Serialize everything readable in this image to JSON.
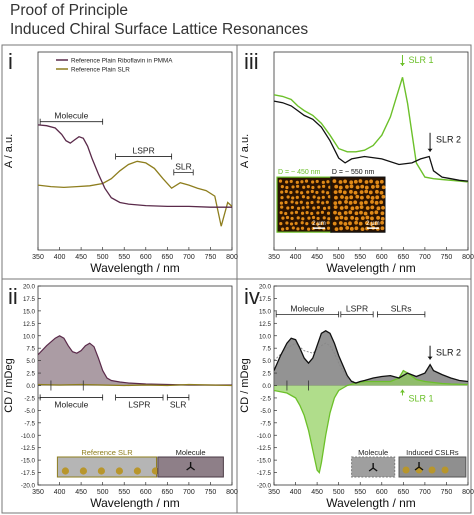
{
  "header": {
    "title_line1": "Proof of Principle",
    "title_line2": "Induced Chiral Surface Lattice Resonances"
  },
  "colors": {
    "black": "#111111",
    "purple": "#5a2a4a",
    "olive": "#8e7e1e",
    "green": "#6cc02a",
    "gray": "#8a8a8a",
    "purple_fill": "#8f7b86",
    "green_fill": "#8fcf5a",
    "frame_bg": "#f2f2f2"
  },
  "chart_data": [
    {
      "panel": "i",
      "type": "line",
      "xlabel": "Wavelength / nm",
      "ylabel": "A / a.u.",
      "xlim": [
        350,
        800
      ],
      "ylim": [
        0.0,
        0.25
      ],
      "xticks": [
        350,
        400,
        450,
        500,
        550,
        600,
        650,
        700,
        750,
        800
      ],
      "yticks": [],
      "legend": [
        "Reference Plain Riboflavin in PMMA",
        "Reference Plain SLR"
      ],
      "annotations": [
        {
          "label": "Molecule",
          "x1": 355,
          "x2": 500,
          "y": 0.162
        },
        {
          "label": "LSPR",
          "x1": 530,
          "x2": 660,
          "y": 0.118
        },
        {
          "label": "SLR",
          "x1": 665,
          "x2": 710,
          "y": 0.098
        }
      ],
      "series": [
        {
          "name": "Reference Plain Riboflavin in PMMA",
          "x": [
            350,
            370,
            390,
            405,
            415,
            425,
            435,
            445,
            455,
            465,
            475,
            490,
            505,
            520,
            540,
            560,
            600,
            650,
            700,
            750,
            800
          ],
          "y": [
            0.158,
            0.157,
            0.154,
            0.146,
            0.138,
            0.135,
            0.139,
            0.143,
            0.141,
            0.131,
            0.116,
            0.096,
            0.078,
            0.066,
            0.06,
            0.058,
            0.056,
            0.055,
            0.055,
            0.054,
            0.054
          ]
        },
        {
          "name": "Reference Plain SLR",
          "x": [
            350,
            380,
            410,
            440,
            470,
            500,
            520,
            540,
            560,
            580,
            600,
            620,
            640,
            660,
            680,
            700,
            720,
            740,
            760,
            775,
            790,
            800
          ],
          "y": [
            0.082,
            0.08,
            0.079,
            0.08,
            0.081,
            0.084,
            0.09,
            0.1,
            0.108,
            0.112,
            0.11,
            0.103,
            0.09,
            0.078,
            0.085,
            0.082,
            0.078,
            0.075,
            0.068,
            0.03,
            0.06,
            0.055
          ]
        }
      ]
    },
    {
      "panel": "iii",
      "type": "line",
      "xlabel": "Wavelength / nm",
      "ylabel": "A / a.u.",
      "xlim": [
        350,
        800
      ],
      "ylim": [
        0.0,
        0.25
      ],
      "xticks": [
        350,
        400,
        450,
        500,
        550,
        600,
        650,
        700,
        750,
        800
      ],
      "annotations": [
        {
          "label": "SLR 1",
          "x": 648,
          "color": "green"
        },
        {
          "label": "SLR 2",
          "x": 712,
          "color": "black"
        }
      ],
      "inset_labels": [
        "D = ~ 450 nm",
        "D = ~ 550 nm"
      ],
      "inset_scale": "2 µm",
      "series": [
        {
          "name": "D ~ 450 nm",
          "x": [
            350,
            370,
            390,
            405,
            420,
            440,
            460,
            480,
            500,
            520,
            540,
            560,
            580,
            600,
            620,
            635,
            648,
            660,
            680,
            700,
            720,
            740,
            760,
            780,
            800
          ],
          "y": [
            0.196,
            0.194,
            0.19,
            0.182,
            0.176,
            0.17,
            0.16,
            0.145,
            0.128,
            0.124,
            0.124,
            0.126,
            0.132,
            0.145,
            0.168,
            0.195,
            0.218,
            0.185,
            0.11,
            0.092,
            0.09,
            0.089,
            0.088,
            0.087,
            0.086
          ]
        },
        {
          "name": "D ~ 550 nm",
          "x": [
            350,
            370,
            390,
            405,
            420,
            440,
            460,
            480,
            500,
            515,
            530,
            560,
            600,
            640,
            670,
            690,
            710,
            720,
            740,
            760,
            780,
            800
          ],
          "y": [
            0.188,
            0.186,
            0.182,
            0.176,
            0.17,
            0.165,
            0.155,
            0.138,
            0.116,
            0.11,
            0.115,
            0.118,
            0.115,
            0.108,
            0.11,
            0.115,
            0.118,
            0.1,
            0.092,
            0.09,
            0.088,
            0.087
          ]
        }
      ]
    },
    {
      "panel": "ii",
      "type": "area",
      "xlabel": "Wavelength / nm",
      "ylabel": "CD / mDeg",
      "xlim": [
        350,
        800
      ],
      "ylim": [
        -20,
        20
      ],
      "xticks": [
        350,
        400,
        450,
        500,
        550,
        600,
        650,
        700,
        750,
        800
      ],
      "yticks": [
        -20,
        -17.5,
        -15,
        -12.5,
        -10,
        -7.5,
        -5,
        -2.5,
        0,
        2.5,
        5,
        7.5,
        10,
        12.5,
        15,
        17.5,
        20
      ],
      "annotations": [
        {
          "label": "Molecule",
          "x1": 355,
          "x2": 500
        },
        {
          "label": "LSPR",
          "x1": 530,
          "x2": 640
        },
        {
          "label": "SLR",
          "x1": 650,
          "x2": 700
        }
      ],
      "legend_boxes": [
        "Reference SLR",
        "Molecule"
      ],
      "series": [
        {
          "name": "Reference Plain Riboflavin in PMMA",
          "x": [
            350,
            370,
            390,
            400,
            410,
            420,
            430,
            440,
            450,
            460,
            470,
            480,
            490,
            500,
            510,
            520,
            540,
            560,
            600,
            650,
            700,
            750,
            800
          ],
          "y": [
            6.2,
            8.0,
            9.5,
            10.0,
            9.5,
            8.0,
            6.8,
            6.5,
            7.0,
            8.0,
            8.5,
            7.8,
            5.5,
            3.0,
            1.5,
            1.0,
            0.7,
            0.5,
            0.3,
            0.2,
            0.1,
            0.1,
            0.1
          ]
        },
        {
          "name": "Reference Plain SLR",
          "x": [
            350,
            400,
            450,
            500,
            550,
            600,
            650,
            700,
            750,
            800
          ],
          "y": [
            0.2,
            0.1,
            0.2,
            0.1,
            0.0,
            0.1,
            0.0,
            0.2,
            0.1,
            0.0
          ]
        }
      ]
    },
    {
      "panel": "iv",
      "type": "area",
      "xlabel": "Wavelength / nm",
      "ylabel": "CD / mDeg",
      "xlim": [
        350,
        800
      ],
      "ylim": [
        -20,
        20
      ],
      "xticks": [
        350,
        400,
        450,
        500,
        550,
        600,
        650,
        700,
        750,
        800
      ],
      "yticks": [
        -20,
        -17.5,
        -15,
        -12.5,
        -10,
        -7.5,
        -5,
        -2.5,
        0,
        2.5,
        5,
        7.5,
        10,
        12.5,
        15,
        17.5,
        20
      ],
      "annotations": [
        {
          "label": "Molecule",
          "x1": 355,
          "x2": 500
        },
        {
          "label": "LSPR",
          "x1": 505,
          "x2": 580
        },
        {
          "label": "SLRs",
          "x1": 590,
          "x2": 700
        },
        {
          "label": "SLR 2",
          "x": 712,
          "color": "black"
        },
        {
          "label": "SLR 1",
          "x": 648,
          "color": "green"
        }
      ],
      "legend_boxes": [
        "Molecule",
        "Induced CSLRs"
      ],
      "series": [
        {
          "name": "D ~ 550 nm",
          "x": [
            350,
            365,
            380,
            390,
            400,
            410,
            420,
            430,
            440,
            450,
            460,
            470,
            480,
            490,
            500,
            510,
            520,
            530,
            540,
            550,
            560,
            580,
            600,
            620,
            640,
            660,
            680,
            700,
            712,
            720,
            740,
            760,
            780,
            800
          ],
          "y": [
            3.0,
            6.0,
            8.5,
            9.5,
            9.2,
            7.5,
            5.5,
            4.5,
            5.5,
            8.0,
            10.5,
            11.0,
            10.5,
            8.5,
            6.0,
            4.0,
            2.0,
            0.8,
            0.5,
            0.8,
            1.0,
            1.5,
            1.8,
            2.0,
            1.5,
            2.5,
            1.8,
            2.5,
            4.2,
            3.0,
            2.2,
            1.5,
            1.0,
            0.8
          ]
        },
        {
          "name": "D ~ 450 nm",
          "x": [
            350,
            380,
            400,
            410,
            420,
            430,
            440,
            450,
            455,
            460,
            470,
            480,
            490,
            500,
            510,
            520,
            540,
            560,
            580,
            600,
            620,
            640,
            650,
            660,
            680,
            700,
            720,
            740,
            760,
            800
          ],
          "y": [
            -1.0,
            -1.5,
            -2.5,
            -4.0,
            -6.0,
            -9.0,
            -13.0,
            -17.0,
            -17.5,
            -15.5,
            -10.0,
            -5.5,
            -2.5,
            -1.0,
            -0.5,
            0.0,
            0.5,
            0.8,
            0.8,
            0.8,
            0.8,
            1.5,
            3.0,
            2.5,
            1.2,
            0.8,
            0.6,
            0.4,
            0.3,
            0.2
          ]
        },
        {
          "name": "Molecule reference",
          "x": [
            350,
            380,
            400,
            420,
            440,
            460,
            470,
            480,
            490,
            500,
            510,
            520,
            540
          ],
          "y": [
            5.0,
            7.5,
            8.5,
            7.0,
            6.5,
            8.0,
            8.5,
            8.0,
            6.5,
            4.5,
            3.0,
            1.5,
            0.5
          ]
        }
      ]
    }
  ]
}
